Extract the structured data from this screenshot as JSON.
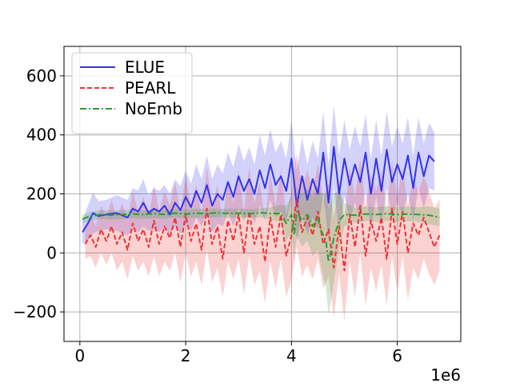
{
  "chart_data": {
    "type": "line",
    "title": "",
    "xlabel": "",
    "ylabel": "",
    "x_offset_label": "1e6",
    "xlim": [
      -0.3,
      7.2
    ],
    "ylim": [
      -300,
      700
    ],
    "x_ticks": [
      0,
      2,
      4,
      6
    ],
    "x_tick_labels": [
      "0",
      "2",
      "4",
      "6"
    ],
    "y_ticks": [
      -200,
      0,
      200,
      400,
      600
    ],
    "y_tick_labels": [
      "−200",
      "0",
      "200",
      "400",
      "600"
    ],
    "grid": true,
    "legend_position": "top-left",
    "series": [
      {
        "name": "ELUE",
        "color": "#3333ee",
        "style": "solid",
        "x": [
          0.05,
          0.15,
          0.25,
          0.35,
          0.5,
          0.7,
          0.9,
          1.0,
          1.1,
          1.2,
          1.3,
          1.4,
          1.5,
          1.6,
          1.7,
          1.8,
          1.9,
          2.0,
          2.1,
          2.2,
          2.3,
          2.4,
          2.5,
          2.6,
          2.7,
          2.8,
          2.9,
          3.0,
          3.1,
          3.2,
          3.3,
          3.4,
          3.5,
          3.6,
          3.7,
          3.8,
          3.9,
          4.0,
          4.1,
          4.2,
          4.3,
          4.4,
          4.5,
          4.6,
          4.7,
          4.8,
          4.9,
          5.0,
          5.1,
          5.2,
          5.3,
          5.4,
          5.5,
          5.6,
          5.7,
          5.8,
          5.9,
          6.0,
          6.1,
          6.2,
          6.3,
          6.4,
          6.5,
          6.6,
          6.7
        ],
        "y": [
          70,
          100,
          135,
          125,
          130,
          135,
          120,
          150,
          140,
          170,
          135,
          150,
          140,
          160,
          130,
          170,
          145,
          190,
          155,
          210,
          170,
          230,
          160,
          200,
          180,
          240,
          190,
          260,
          210,
          250,
          200,
          280,
          220,
          300,
          230,
          260,
          210,
          320,
          160,
          260,
          180,
          250,
          200,
          340,
          170,
          360,
          200,
          320,
          230,
          300,
          240,
          340,
          200,
          320,
          210,
          350,
          240,
          300,
          250,
          330,
          220,
          340,
          260,
          330,
          310
        ],
        "band_width": [
          40,
          60,
          70,
          50,
          50,
          60,
          60,
          70,
          70,
          80,
          60,
          70,
          70,
          70,
          70,
          80,
          80,
          90,
          80,
          90,
          80,
          100,
          90,
          100,
          90,
          100,
          100,
          110,
          100,
          110,
          100,
          120,
          110,
          120,
          110,
          120,
          110,
          130,
          120,
          130,
          120,
          130,
          120,
          140,
          130,
          140,
          130,
          130,
          120,
          130,
          120,
          130,
          120,
          130,
          120,
          130,
          120,
          130,
          120,
          130,
          110,
          120,
          110,
          110,
          100
        ]
      },
      {
        "name": "PEARL",
        "color": "#ee3333",
        "style": "dashed",
        "x": [
          0.1,
          0.2,
          0.3,
          0.4,
          0.5,
          0.6,
          0.7,
          0.8,
          0.9,
          1.0,
          1.1,
          1.2,
          1.3,
          1.4,
          1.5,
          1.6,
          1.7,
          1.8,
          1.9,
          2.0,
          2.1,
          2.2,
          2.3,
          2.4,
          2.5,
          2.6,
          2.7,
          2.8,
          2.9,
          3.0,
          3.1,
          3.2,
          3.3,
          3.4,
          3.5,
          3.6,
          3.7,
          3.8,
          3.9,
          4.0,
          4.1,
          4.2,
          4.3,
          4.4,
          4.5,
          4.6,
          4.7,
          4.8,
          4.9,
          5.0,
          5.1,
          5.2,
          5.3,
          5.4,
          5.5,
          5.6,
          5.7,
          5.8,
          5.9,
          6.0,
          6.1,
          6.2,
          6.3,
          6.4,
          6.5,
          6.6,
          6.7,
          6.8
        ],
        "y": [
          30,
          60,
          20,
          80,
          40,
          90,
          30,
          70,
          10,
          100,
          40,
          80,
          20,
          110,
          30,
          90,
          50,
          120,
          20,
          130,
          40,
          100,
          10,
          150,
          30,
          90,
          -20,
          110,
          40,
          130,
          0,
          140,
          30,
          90,
          -30,
          120,
          20,
          130,
          -10,
          60,
          180,
          70,
          120,
          60,
          140,
          30,
          80,
          -50,
          90,
          -60,
          130,
          20,
          160,
          -10,
          110,
          40,
          120,
          -20,
          150,
          30,
          140,
          0,
          100,
          60,
          120,
          70,
          20,
          60
        ],
        "band_width": [
          50,
          70,
          70,
          80,
          80,
          90,
          90,
          100,
          100,
          110,
          100,
          110,
          100,
          120,
          110,
          120,
          110,
          120,
          120,
          130,
          120,
          130,
          120,
          140,
          130,
          140,
          130,
          140,
          130,
          150,
          140,
          150,
          140,
          150,
          140,
          150,
          140,
          150,
          140,
          150,
          160,
          150,
          160,
          150,
          160,
          150,
          160,
          170,
          160,
          170,
          160,
          170,
          160,
          170,
          160,
          170,
          160,
          160,
          160,
          160,
          150,
          160,
          150,
          150,
          140,
          140,
          130,
          120
        ]
      },
      {
        "name": "NoEmb",
        "color": "#339933",
        "style": "dashdot",
        "x": [
          0.05,
          0.2,
          0.4,
          0.6,
          0.8,
          1.0,
          1.2,
          1.4,
          1.6,
          1.8,
          2.0,
          2.2,
          2.4,
          2.6,
          2.8,
          3.0,
          3.2,
          3.4,
          3.6,
          3.8,
          3.9,
          4.0,
          4.05,
          4.1,
          4.2,
          4.3,
          4.4,
          4.5,
          4.55,
          4.6,
          4.65,
          4.7,
          4.8,
          4.9,
          5.0,
          5.2,
          5.4,
          5.6,
          5.8,
          6.0,
          6.2,
          6.4,
          6.6,
          6.8
        ],
        "y": [
          115,
          125,
          130,
          128,
          130,
          132,
          130,
          133,
          130,
          135,
          132,
          135,
          133,
          136,
          134,
          135,
          133,
          136,
          134,
          133,
          100,
          130,
          60,
          140,
          110,
          130,
          90,
          120,
          80,
          60,
          40,
          -30,
          50,
          110,
          130,
          128,
          132,
          130,
          133,
          130,
          132,
          130,
          128,
          120
        ],
        "band_width": [
          15,
          15,
          15,
          15,
          15,
          15,
          15,
          15,
          15,
          15,
          15,
          15,
          15,
          15,
          15,
          15,
          15,
          15,
          20,
          30,
          60,
          60,
          80,
          80,
          90,
          90,
          100,
          110,
          120,
          140,
          160,
          180,
          150,
          100,
          40,
          25,
          25,
          25,
          25,
          25,
          25,
          25,
          30,
          30
        ]
      }
    ]
  }
}
